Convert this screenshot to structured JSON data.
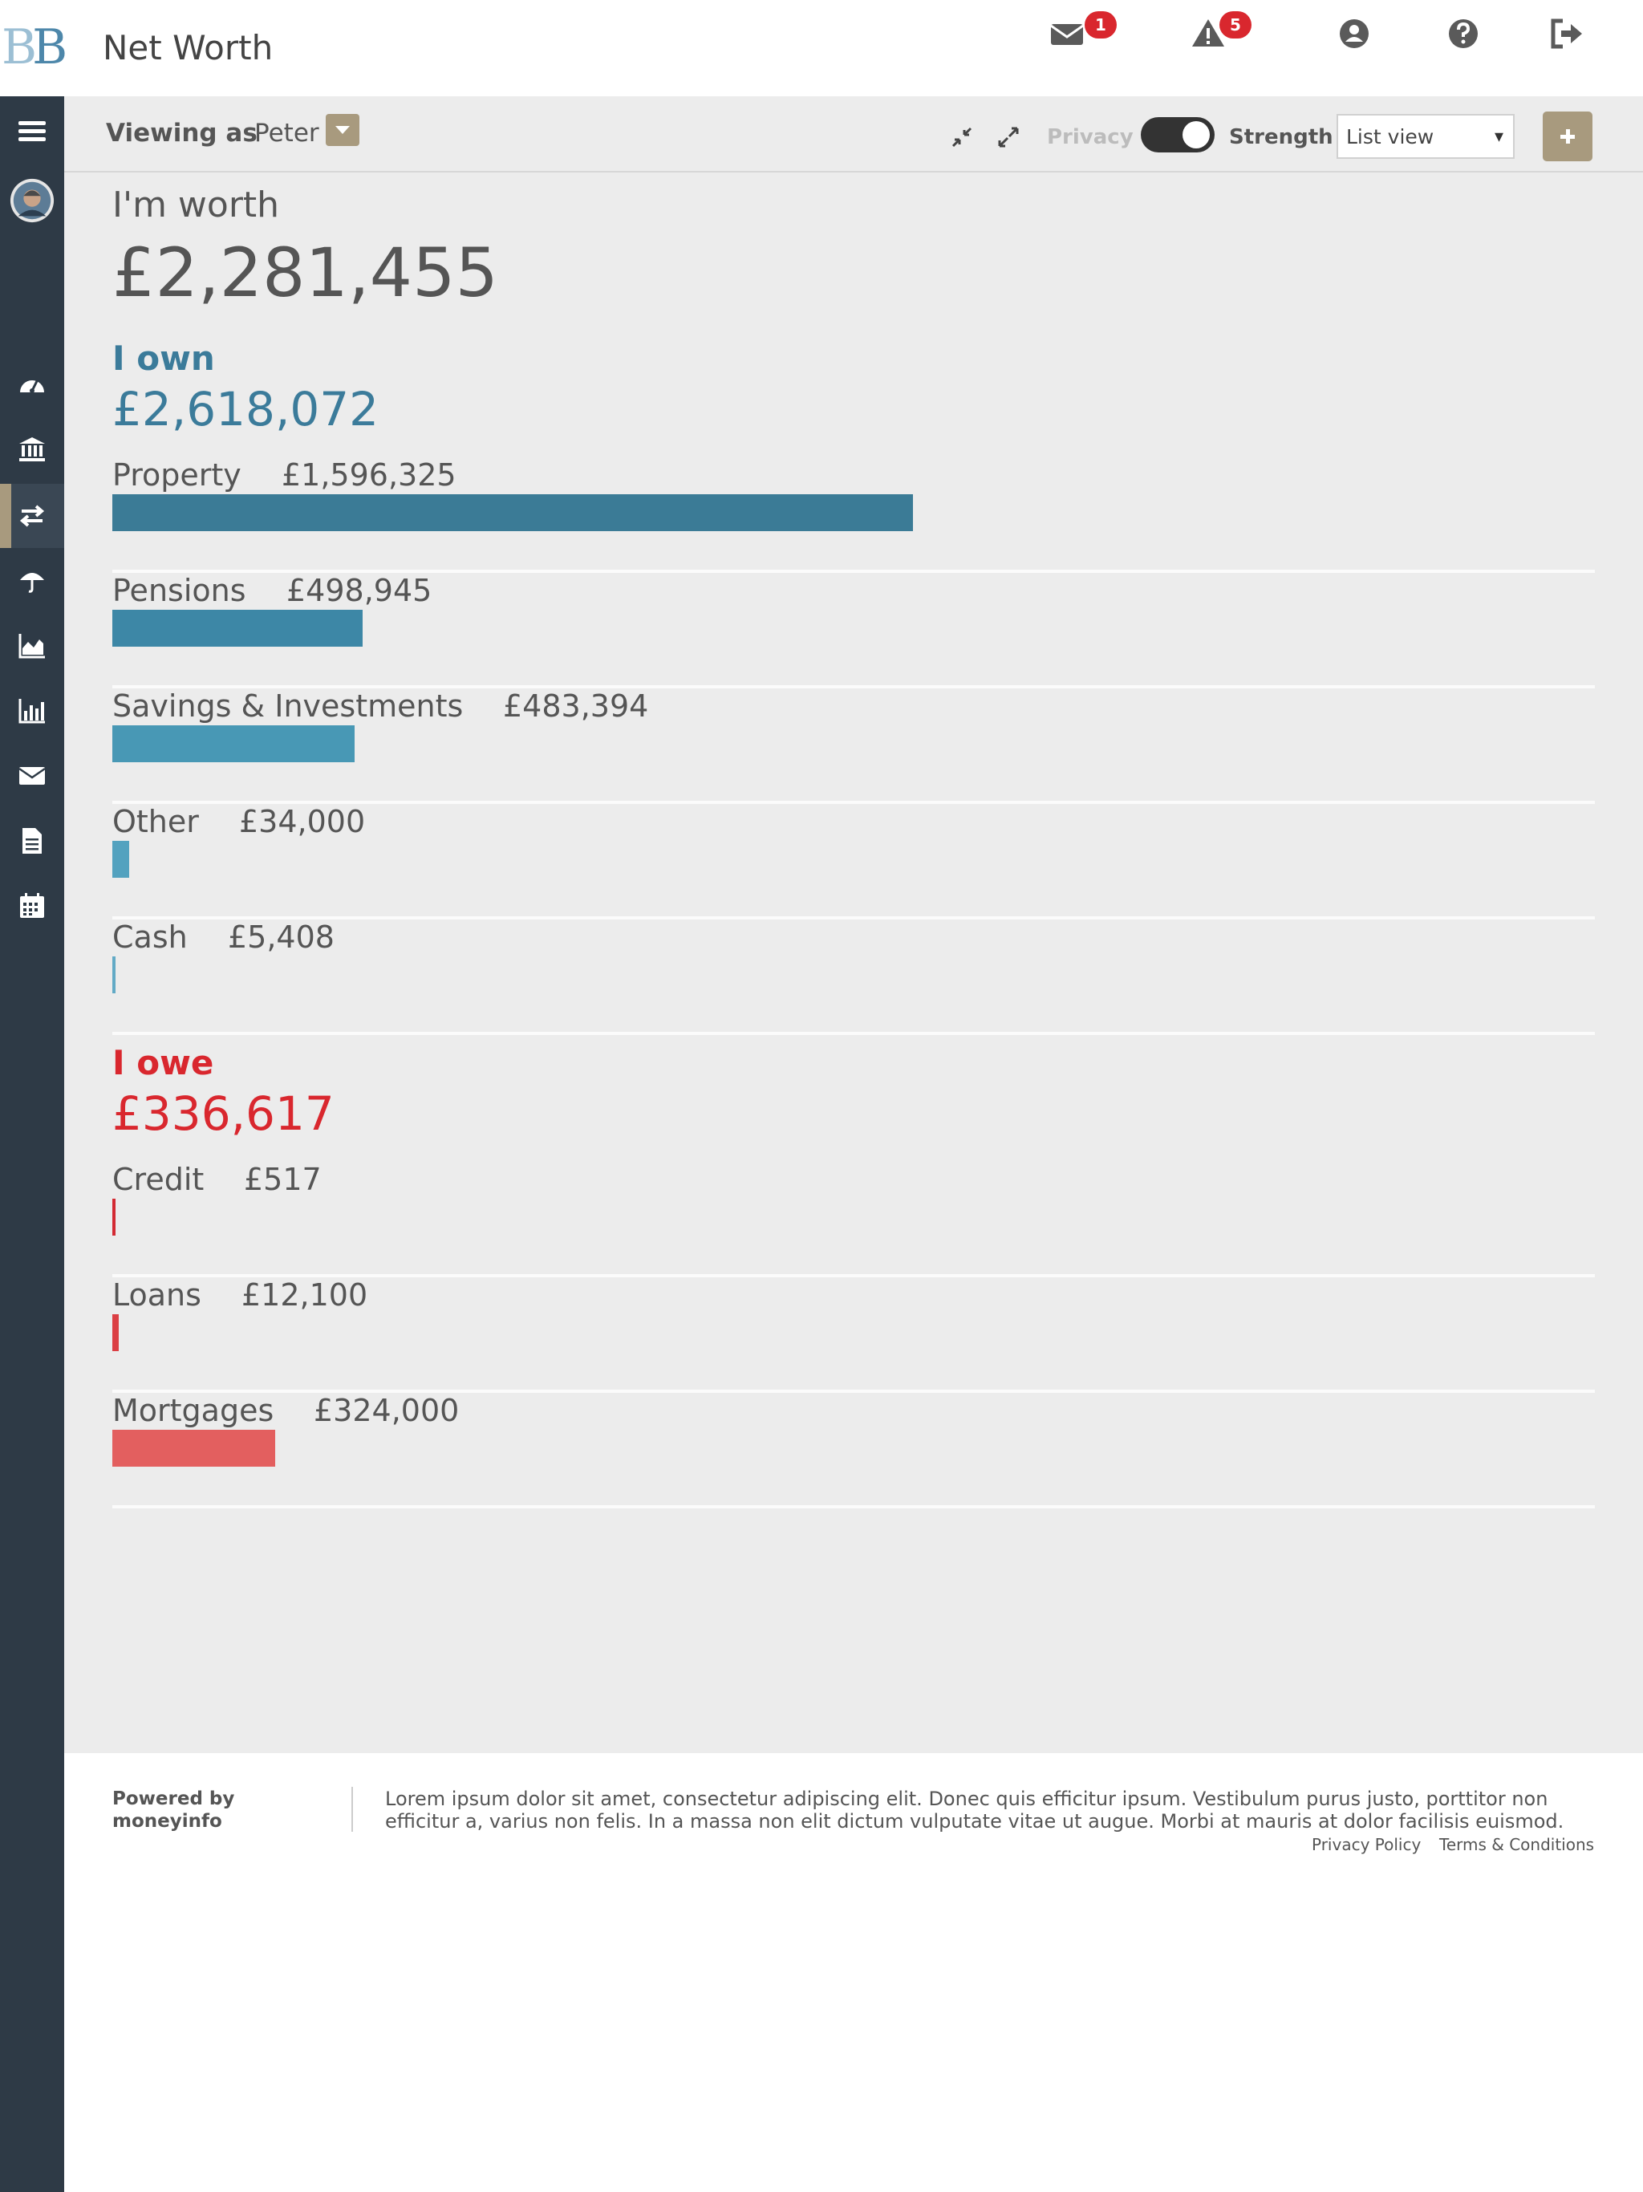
{
  "header": {
    "logo_text": "BB",
    "title": "Net Worth",
    "icons": [
      {
        "name": "envelope-icon",
        "badge": "1"
      },
      {
        "name": "warning-icon",
        "badge": "5"
      },
      {
        "name": "user-icon"
      },
      {
        "name": "help-icon"
      },
      {
        "name": "sign-out-icon"
      }
    ]
  },
  "sidebar": {
    "items": [
      {
        "name": "menu-icon"
      },
      {
        "name": "avatar"
      },
      {
        "name": "dashboard-icon"
      },
      {
        "name": "bank-icon"
      },
      {
        "name": "transfer-icon",
        "active": true
      },
      {
        "name": "umbrella-icon"
      },
      {
        "name": "area-chart-icon"
      },
      {
        "name": "bar-chart-icon"
      },
      {
        "name": "envelope-icon"
      },
      {
        "name": "document-icon"
      },
      {
        "name": "calendar-icon"
      }
    ],
    "active_color": "#a89a7e"
  },
  "toolbar": {
    "viewing_label": "Viewing as",
    "viewing_user": "Peter",
    "privacy_label": "Privacy",
    "privacy_on": true,
    "strength_label": "Strength",
    "view_select": "List view",
    "view_select_arrow": "▾",
    "accent": "#a89a7e"
  },
  "summary": {
    "worth_label": "I'm worth",
    "worth_total": "£2,281,455"
  },
  "own": {
    "title": "I own",
    "total": "£2,618,072",
    "color": "#3b7b9a",
    "categories": [
      {
        "name": "Property",
        "value": "£1,596,325",
        "amount": 1596325,
        "color": "#3b7b96"
      },
      {
        "name": "Pensions",
        "value": "£498,945",
        "amount": 498945,
        "color": "#3d87a6"
      },
      {
        "name": "Savings & Investments",
        "value": "£483,394",
        "amount": 483394,
        "color": "#4898b5"
      },
      {
        "name": "Other",
        "value": "£34,000",
        "amount": 34000,
        "color": "#53a2bf"
      },
      {
        "name": "Cash",
        "value": "£5,408",
        "amount": 5408,
        "color": "#62aac6"
      }
    ]
  },
  "owe": {
    "title": "I owe",
    "total": "£336,617",
    "color": "#d9272e",
    "categories": [
      {
        "name": "Credit",
        "value": "£517",
        "amount": 517,
        "color": "#d32a33"
      },
      {
        "name": "Loans",
        "value": "£12,100",
        "amount": 12100,
        "color": "#db3f44"
      },
      {
        "name": "Mortgages",
        "value": "£324,000",
        "amount": 324000,
        "color": "#e35f5f"
      }
    ]
  },
  "footer": {
    "powered_by": "Powered by moneyinfo",
    "text": "Lorem ipsum dolor sit amet, consectetur adipiscing elit. Donec quis efficitur ipsum. Vestibulum purus justo, porttitor non efficitur a, varius non felis. In a massa non elit dictum vulputate vitae ut augue. Morbi at mauris at dolor facilisis euismod.",
    "privacy_link": "Privacy Policy",
    "terms_link": "Terms & Conditions"
  }
}
